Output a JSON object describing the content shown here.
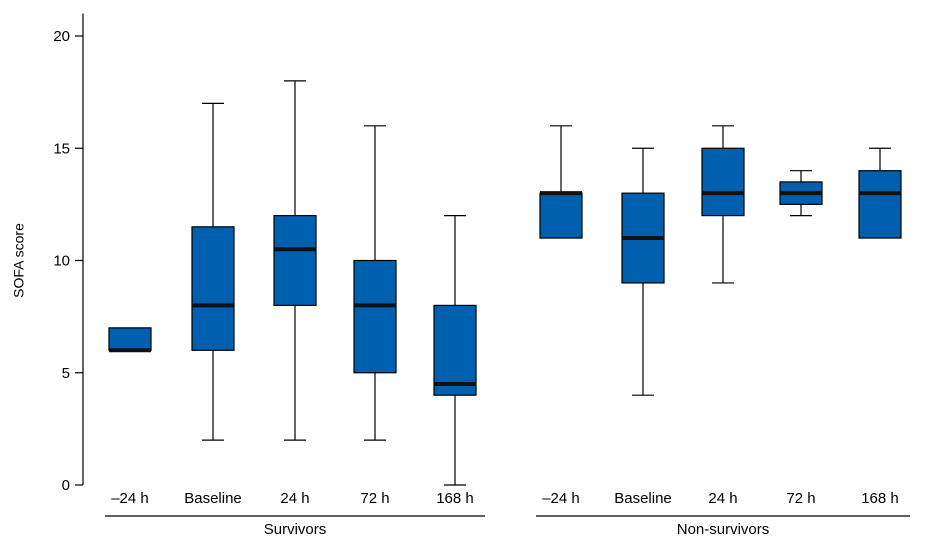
{
  "chart_data": {
    "type": "box",
    "ylabel": "SOFA score",
    "ylim": [
      0,
      21
    ],
    "yticks": [
      0,
      5,
      10,
      15,
      20
    ],
    "box_color": "#0060B0",
    "groups": [
      {
        "name": "Survivors",
        "boxes": [
          {
            "label": "–24 h",
            "min": 6,
            "q1": 6,
            "median": 6,
            "q3": 7,
            "max": 7
          },
          {
            "label": "Baseline",
            "min": 2,
            "q1": 6,
            "median": 8,
            "q3": 11.5,
            "max": 17
          },
          {
            "label": "24 h",
            "min": 2,
            "q1": 8,
            "median": 10.5,
            "q3": 12,
            "max": 18
          },
          {
            "label": "72 h",
            "min": 2,
            "q1": 5,
            "median": 8,
            "q3": 10,
            "max": 16
          },
          {
            "label": "168 h",
            "min": 0,
            "q1": 4,
            "median": 4.5,
            "q3": 8,
            "max": 12
          }
        ]
      },
      {
        "name": "Non-survivors",
        "boxes": [
          {
            "label": "–24 h",
            "min": 11,
            "q1": 11,
            "median": 13,
            "q3": 13,
            "max": 16
          },
          {
            "label": "Baseline",
            "min": 4,
            "q1": 9,
            "median": 11,
            "q3": 13,
            "max": 15
          },
          {
            "label": "24 h",
            "min": 9,
            "q1": 12,
            "median": 13,
            "q3": 15,
            "max": 16
          },
          {
            "label": "72 h",
            "min": 12,
            "q1": 12.5,
            "median": 13,
            "q3": 13.5,
            "max": 14
          },
          {
            "label": "168 h",
            "min": 11,
            "q1": 11,
            "median": 13,
            "q3": 14,
            "max": 15
          }
        ]
      }
    ]
  }
}
